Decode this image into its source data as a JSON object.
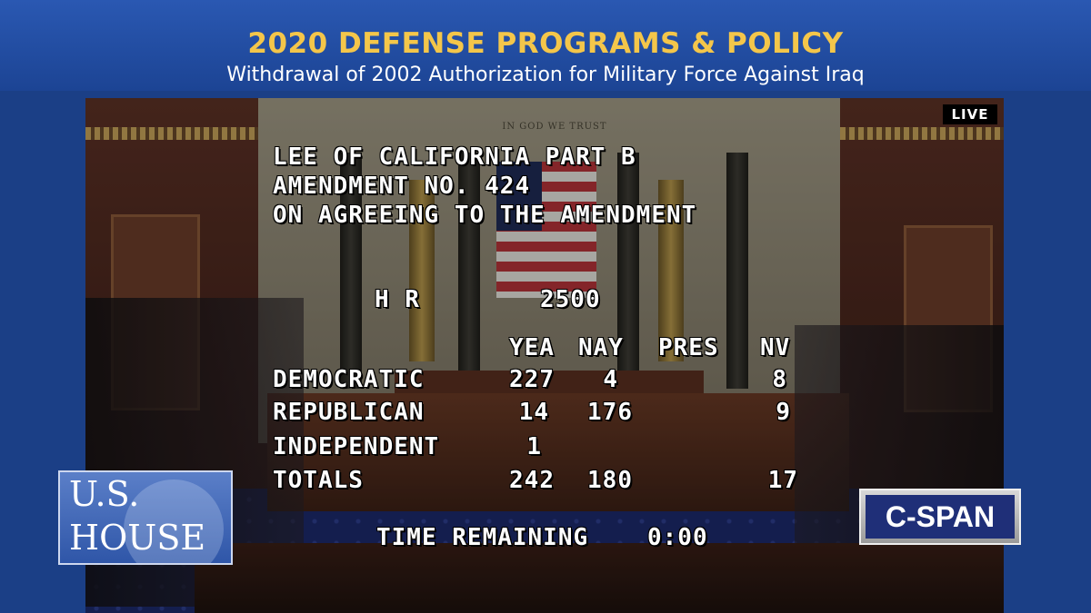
{
  "banner": {
    "title": "2020 DEFENSE PROGRAMS & POLICY",
    "subtitle": "Withdrawal of 2002 Authorization for Military Force Against Iraq"
  },
  "live_label": "LIVE",
  "motto": "IN GOD WE TRUST",
  "vote": {
    "heading": [
      "LEE OF CALIFORNIA PART B",
      "AMENDMENT NO. 424",
      "ON AGREEING TO THE AMENDMENT"
    ],
    "bill_prefix": "H R",
    "bill_number": "2500",
    "columns": [
      "YEA",
      "NAY",
      "PRES",
      "NV"
    ],
    "rows": [
      {
        "party": "DEMOCRATIC",
        "yea": "227",
        "nay": "4",
        "pres": "",
        "nv": "8"
      },
      {
        "party": "REPUBLICAN",
        "yea": "14",
        "nay": "176",
        "pres": "",
        "nv": "9"
      },
      {
        "party": "INDEPENDENT",
        "yea": "1",
        "nay": "",
        "pres": "",
        "nv": ""
      },
      {
        "party": "TOTALS",
        "yea": "242",
        "nay": "180",
        "pres": "",
        "nv": "17"
      }
    ],
    "time_label": "TIME REMAINING",
    "time_value": "0:00"
  },
  "logos": {
    "ush_line1": "U.S.",
    "ush_line2": "HOUSE",
    "cspan": "C-SPAN"
  }
}
